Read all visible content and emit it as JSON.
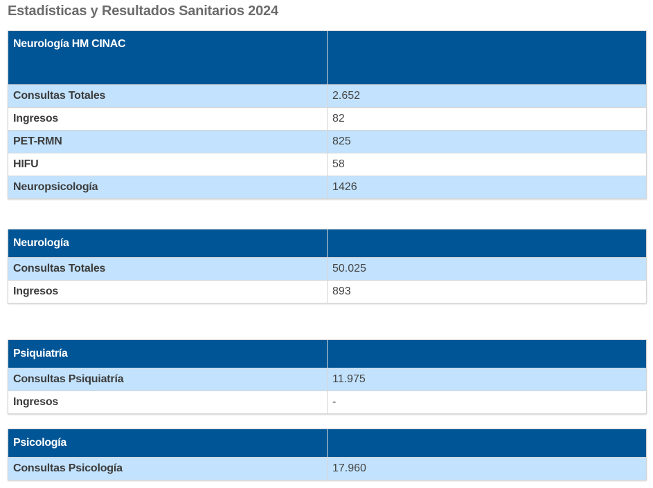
{
  "page": {
    "title": "Estadísticas y Resultados Sanitarios 2024"
  },
  "colors": {
    "header_bg": "#005596",
    "row_alt_bg": "#c2e2fd",
    "title_text": "#6b6b6b"
  },
  "tables": [
    {
      "heading": "Neurología HM CINAC",
      "rows": [
        {
          "label": "Consultas Totales",
          "value": "2.652"
        },
        {
          "label": "Ingresos",
          "value": "82"
        },
        {
          "label": "PET-RMN",
          "value": "825"
        },
        {
          "label": "HIFU",
          "value": "58"
        },
        {
          "label": "Neuropsicología",
          "value": "1426"
        }
      ]
    },
    {
      "heading": "Neurología",
      "rows": [
        {
          "label": "Consultas Totales",
          "value": "50.025"
        },
        {
          "label": "Ingresos",
          "value": "893"
        }
      ]
    },
    {
      "heading": "Psiquiatría",
      "rows": [
        {
          "label": "Consultas Psiquiatría",
          "value": "11.975"
        },
        {
          "label": "Ingresos",
          "value": "-"
        }
      ]
    },
    {
      "heading": "Psicología",
      "rows": [
        {
          "label": "Consultas Psicología",
          "value": "17.960"
        }
      ]
    }
  ]
}
